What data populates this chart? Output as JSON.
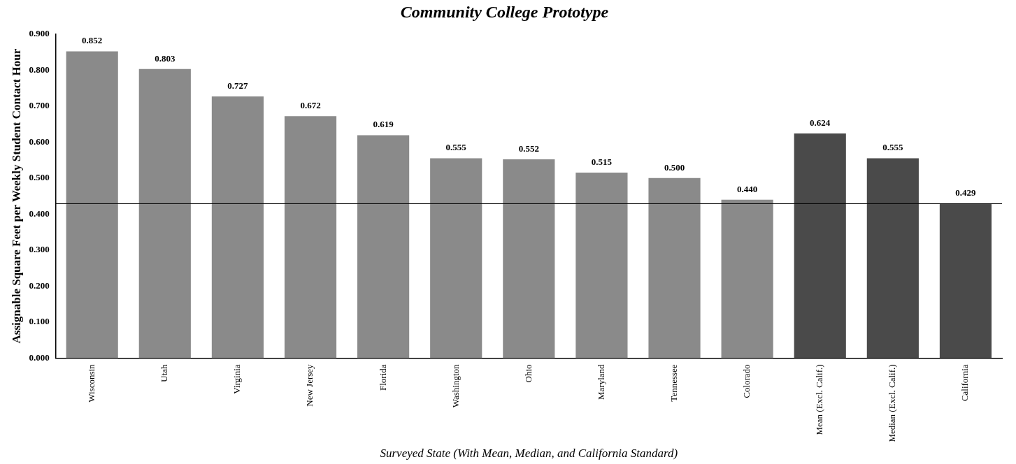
{
  "chart_data": {
    "type": "bar",
    "title": "Community College Prototype",
    "xlabel": "Surveyed State (With Mean, Median, and California Standard)",
    "ylabel": "Assignable Square Feet per Weekly Student Contact Hour",
    "categories": [
      "Wisconsin",
      "Utah",
      "Virginia",
      "New Jersey",
      "Florida",
      "Washington",
      "Ohio",
      "Maryland",
      "Tennessee",
      "Colorado",
      "Mean (Excl. Calif.)",
      "Median (Excl. Calif.)",
      "California"
    ],
    "values": [
      0.852,
      0.803,
      0.727,
      0.672,
      0.619,
      0.555,
      0.552,
      0.515,
      0.5,
      0.44,
      0.624,
      0.555,
      0.429
    ],
    "value_labels": [
      "0.852",
      "0.803",
      "0.727",
      "0.672",
      "0.619",
      "0.555",
      "0.552",
      "0.515",
      "0.500",
      "0.440",
      "0.624",
      "0.555",
      "0.429"
    ],
    "colors": [
      "#8a8a8a",
      "#8a8a8a",
      "#8a8a8a",
      "#8a8a8a",
      "#8a8a8a",
      "#8a8a8a",
      "#8a8a8a",
      "#8a8a8a",
      "#8a8a8a",
      "#8a8a8a",
      "#4a4a4a",
      "#4a4a4a",
      "#4a4a4a"
    ],
    "ylim": [
      0,
      0.9
    ],
    "yticks": [
      {
        "value": 0,
        "label": "0.000"
      },
      {
        "value": 0.1,
        "label": "0.100"
      },
      {
        "value": 0.2,
        "label": "0.200"
      },
      {
        "value": 0.3,
        "label": "0.300"
      },
      {
        "value": 0.4,
        "label": "0.400"
      },
      {
        "value": 0.5,
        "label": "0.500"
      },
      {
        "value": 0.6,
        "label": "0.600"
      },
      {
        "value": 0.7,
        "label": "0.700"
      },
      {
        "value": 0.8,
        "label": "0.800"
      },
      {
        "value": 0.9,
        "label": "0.900"
      }
    ],
    "ref_lines": [
      {
        "axis": "y",
        "value": 0.429,
        "color": "#000000"
      }
    ],
    "grid": false,
    "legend": false
  }
}
